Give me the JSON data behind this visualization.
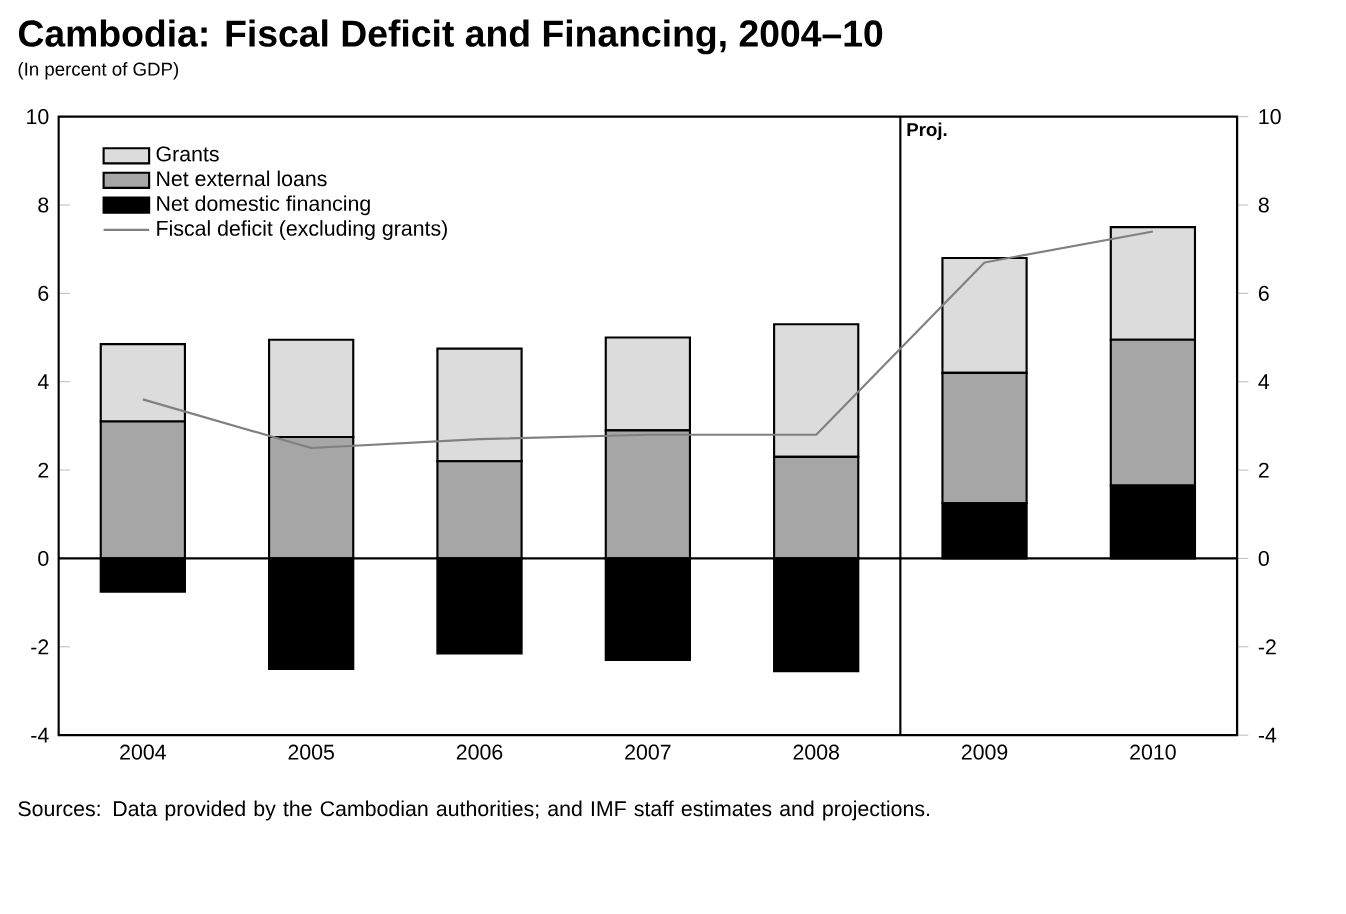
{
  "chart_data": {
    "type": "bar",
    "stacked": true,
    "title": "Cambodia: Fiscal Deficit and Financing, 2004–10",
    "subtitle": "(In percent of GDP)",
    "categories": [
      "2004",
      "2005",
      "2006",
      "2007",
      "2008",
      "2009",
      "2010"
    ],
    "series": [
      {
        "name": "Net domestic financing",
        "color": "#000000",
        "values": [
          -0.75,
          -2.5,
          -2.15,
          -2.3,
          -2.55,
          1.25,
          1.65
        ]
      },
      {
        "name": "Net external loans",
        "color": "#a6a6a6",
        "values": [
          3.1,
          2.75,
          2.2,
          2.9,
          2.3,
          2.95,
          3.3
        ]
      },
      {
        "name": "Grants",
        "color": "#dcdcdc",
        "values": [
          1.75,
          2.2,
          2.55,
          2.1,
          3.0,
          2.6,
          2.55
        ]
      },
      {
        "name": "Fiscal deficit (excluding grants)",
        "type": "line",
        "color": "#808080",
        "values": [
          3.6,
          2.5,
          2.7,
          2.8,
          2.8,
          6.7,
          7.4
        ]
      }
    ],
    "ylim": [
      -4,
      10
    ],
    "yticks": [
      -4,
      -2,
      0,
      2,
      4,
      6,
      8,
      10
    ],
    "y2lim": [
      -4,
      10
    ],
    "y2ticks": [
      -4,
      -2,
      0,
      2,
      4,
      6,
      8,
      10
    ],
    "legend": "top left",
    "annotations": [
      "Proj.",
      "Sources: Data provided by the Cambodian authorities; and IMF staff estimates and projections."
    ]
  }
}
